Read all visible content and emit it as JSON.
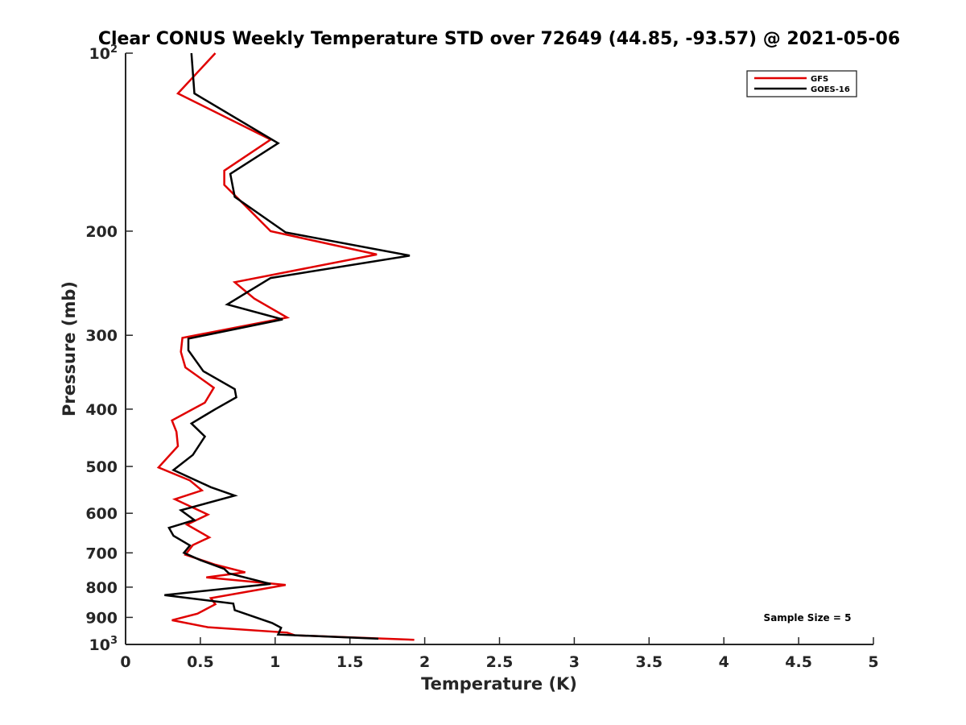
{
  "chart_data": {
    "type": "line",
    "title": "Clear CONUS Weekly Temperature STD over 72649 (44.85, -93.57) @ 2021-05-06",
    "xlabel": "Temperature (K)",
    "ylabel": "Pressure (mb)",
    "xlim": [
      0,
      5
    ],
    "ylim": [
      100,
      1000
    ],
    "y_scale": "log",
    "y_reversed": true,
    "x_ticks": [
      {
        "value": 0,
        "label": "0"
      },
      {
        "value": 0.5,
        "label": "0.5"
      },
      {
        "value": 1,
        "label": "1"
      },
      {
        "value": 1.5,
        "label": "1.5"
      },
      {
        "value": 2,
        "label": "2"
      },
      {
        "value": 2.5,
        "label": "2.5"
      },
      {
        "value": 3,
        "label": "3"
      },
      {
        "value": 3.5,
        "label": "3.5"
      },
      {
        "value": 4,
        "label": "4"
      },
      {
        "value": 4.5,
        "label": "4.5"
      },
      {
        "value": 5,
        "label": "5"
      }
    ],
    "y_ticks": [
      {
        "value": 100,
        "base": "10",
        "exp": "2"
      },
      {
        "value": 200,
        "label": "200"
      },
      {
        "value": 300,
        "label": "300"
      },
      {
        "value": 400,
        "label": "400"
      },
      {
        "value": 500,
        "label": "500"
      },
      {
        "value": 600,
        "label": "600"
      },
      {
        "value": 700,
        "label": "700"
      },
      {
        "value": 800,
        "label": "800"
      },
      {
        "value": 900,
        "label": "900"
      },
      {
        "value": 1000,
        "base": "10",
        "exp": "3"
      }
    ],
    "grid": false,
    "legend_position": "top-right",
    "annotation": "Sample Size = 5",
    "series": [
      {
        "name": "GFS",
        "color": "#e00000",
        "points": [
          [
            0.6,
            100
          ],
          [
            0.35,
            117
          ],
          [
            0.97,
            140
          ],
          [
            0.66,
            158
          ],
          [
            0.66,
            167
          ],
          [
            0.77,
            178
          ],
          [
            0.97,
            200
          ],
          [
            1.68,
            219
          ],
          [
            0.73,
            244
          ],
          [
            0.86,
            260
          ],
          [
            1.08,
            280
          ],
          [
            0.38,
            303
          ],
          [
            0.37,
            320
          ],
          [
            0.4,
            340
          ],
          [
            0.59,
            368
          ],
          [
            0.53,
            390
          ],
          [
            0.31,
            418
          ],
          [
            0.34,
            437
          ],
          [
            0.35,
            462
          ],
          [
            0.22,
            502
          ],
          [
            0.43,
            528
          ],
          [
            0.51,
            549
          ],
          [
            0.33,
            568
          ],
          [
            0.55,
            603
          ],
          [
            0.41,
            627
          ],
          [
            0.56,
            659
          ],
          [
            0.45,
            679
          ],
          [
            0.4,
            705
          ],
          [
            0.6,
            733
          ],
          [
            0.8,
            755
          ],
          [
            0.54,
            770
          ],
          [
            1.07,
            793
          ],
          [
            0.57,
            835
          ],
          [
            0.6,
            855
          ],
          [
            0.48,
            887
          ],
          [
            0.31,
            910
          ],
          [
            0.55,
            935
          ],
          [
            1.08,
            955
          ],
          [
            1.13,
            965
          ],
          [
            1.93,
            982
          ]
        ]
      },
      {
        "name": "GOES-16",
        "color": "#000000",
        "points": [
          [
            0.44,
            100
          ],
          [
            0.46,
            117
          ],
          [
            1.02,
            142
          ],
          [
            0.7,
            160
          ],
          [
            0.73,
            175
          ],
          [
            1.07,
            201
          ],
          [
            1.9,
            220
          ],
          [
            0.97,
            240
          ],
          [
            0.68,
            266
          ],
          [
            1.05,
            282
          ],
          [
            0.42,
            304
          ],
          [
            0.42,
            318
          ],
          [
            0.52,
            345
          ],
          [
            0.73,
            370
          ],
          [
            0.74,
            382
          ],
          [
            0.6,
            400
          ],
          [
            0.44,
            423
          ],
          [
            0.53,
            445
          ],
          [
            0.45,
            478
          ],
          [
            0.32,
            507
          ],
          [
            0.57,
            542
          ],
          [
            0.73,
            560
          ],
          [
            0.37,
            593
          ],
          [
            0.46,
            616
          ],
          [
            0.29,
            635
          ],
          [
            0.32,
            655
          ],
          [
            0.43,
            680
          ],
          [
            0.39,
            700
          ],
          [
            0.5,
            720
          ],
          [
            0.66,
            745
          ],
          [
            0.69,
            758
          ],
          [
            0.97,
            790
          ],
          [
            0.26,
            825
          ],
          [
            0.72,
            853
          ],
          [
            0.73,
            875
          ],
          [
            0.98,
            920
          ],
          [
            1.04,
            937
          ],
          [
            1.02,
            962
          ],
          [
            1.69,
            978
          ]
        ]
      }
    ]
  }
}
